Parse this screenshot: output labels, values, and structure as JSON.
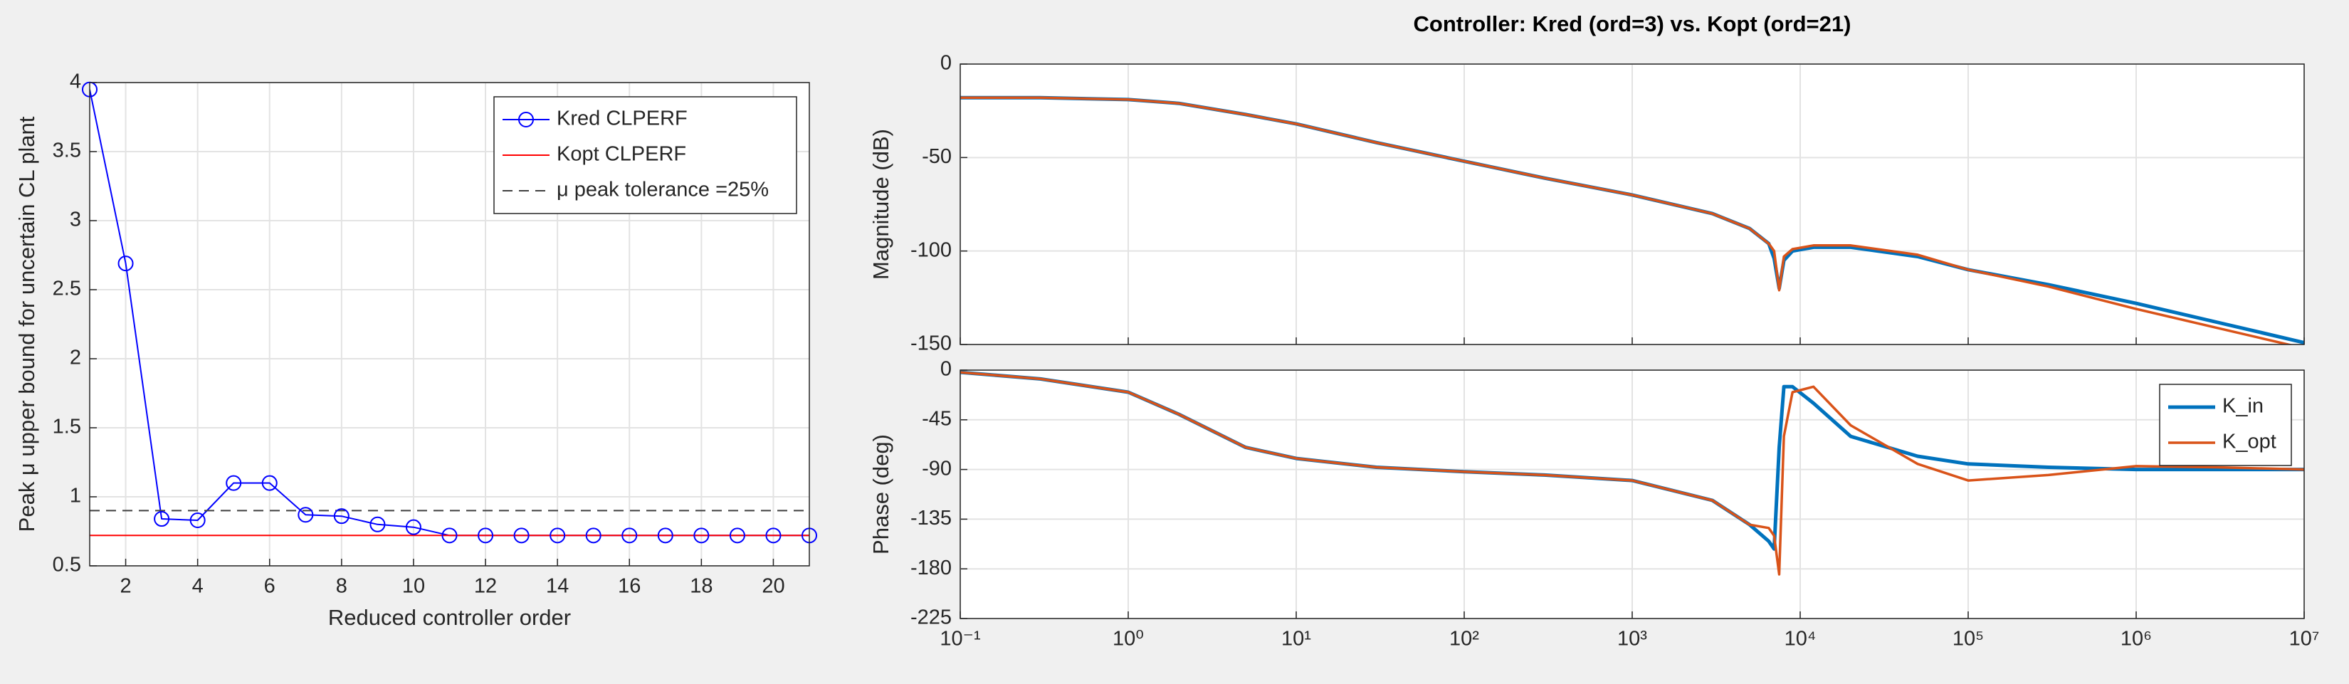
{
  "chart_data": [
    {
      "type": "line",
      "x": [
        1,
        2,
        3,
        4,
        5,
        6,
        7,
        8,
        9,
        10,
        11,
        12,
        13,
        14,
        15,
        16,
        17,
        18,
        19,
        20,
        21
      ],
      "xlim": [
        1,
        21
      ],
      "xticks": [
        2,
        4,
        6,
        8,
        10,
        12,
        14,
        16,
        18,
        20
      ],
      "ylim": [
        0.5,
        4
      ],
      "yticks": [
        0.5,
        1,
        1.5,
        2,
        2.5,
        3,
        3.5,
        4
      ],
      "xlabel": "Reduced controller order",
      "ylabel": "Peak μ upper bound for uncertain CL plant",
      "grid": true,
      "legend": "northeast",
      "series": [
        {
          "name": "Kred CLPERF",
          "color": "#0000ff",
          "marker": "circle",
          "values": [
            3.95,
            2.69,
            0.84,
            0.83,
            1.1,
            1.1,
            0.87,
            0.86,
            0.8,
            0.78,
            0.72,
            0.72,
            0.72,
            0.72,
            0.72,
            0.72,
            0.72,
            0.72,
            0.72,
            0.72,
            0.72
          ]
        },
        {
          "name": "Kopt CLPERF",
          "color": "#ff0000",
          "values": [
            0.72,
            0.72,
            0.72,
            0.72,
            0.72,
            0.72,
            0.72,
            0.72,
            0.72,
            0.72,
            0.72,
            0.72,
            0.72,
            0.72,
            0.72,
            0.72,
            0.72,
            0.72,
            0.72,
            0.72,
            0.72
          ]
        },
        {
          "name": "μ peak tolerance =25%",
          "color": "#404040",
          "dash": true,
          "values": [
            0.9,
            0.9,
            0.9,
            0.9,
            0.9,
            0.9,
            0.9,
            0.9,
            0.9,
            0.9,
            0.9,
            0.9,
            0.9,
            0.9,
            0.9,
            0.9,
            0.9,
            0.9,
            0.9,
            0.9,
            0.9
          ]
        }
      ]
    },
    {
      "type": "line",
      "title": "Controller: Kred (ord=3) vs. Kopt (ord=21)",
      "xscale": "log",
      "xticklabels": false,
      "x": [
        0.1,
        0.3,
        1,
        2,
        5,
        10,
        30,
        100,
        300,
        1000,
        3000,
        5000,
        6500,
        7000,
        7500,
        8000,
        9000,
        12000,
        20000,
        50000,
        100000,
        300000,
        1000000,
        3000000,
        10000000
      ],
      "xlim": [
        0.1,
        10000000
      ],
      "xticks": [
        0.1,
        1,
        10,
        100,
        1000,
        10000,
        100000,
        1000000,
        10000000
      ],
      "ylim": [
        -150,
        0
      ],
      "yticks": [
        -150,
        -100,
        -50,
        0
      ],
      "ylabel": "Magnitude (dB)",
      "grid": true,
      "series": [
        {
          "color": "#0072bd",
          "width": 5,
          "values": [
            -18,
            -18,
            -19,
            -21,
            -27,
            -32,
            -42,
            -52,
            -61,
            -70,
            -80,
            -88,
            -96,
            -104,
            -120,
            -105,
            -100,
            -98,
            -98,
            -103,
            -110,
            -118,
            -128,
            -138,
            -149
          ]
        },
        {
          "color": "#d95319",
          "width": 3.5,
          "values": [
            -18,
            -18,
            -19,
            -21,
            -27,
            -32,
            -42,
            -52,
            -61,
            -70,
            -80,
            -88,
            -96,
            -100,
            -121,
            -103,
            -99,
            -97,
            -97,
            -102,
            -110,
            -119,
            -131,
            -141,
            -152
          ]
        }
      ]
    },
    {
      "type": "line",
      "xscale": "log",
      "x": [
        0.1,
        0.3,
        1,
        2,
        5,
        10,
        30,
        100,
        300,
        1000,
        3000,
        5000,
        6500,
        7000,
        7500,
        8000,
        9000,
        12000,
        20000,
        50000,
        100000,
        300000,
        1000000,
        3000000,
        10000000
      ],
      "xlim": [
        0.1,
        10000000
      ],
      "xticks": [
        {
          "value": 0.1,
          "label": "10⁻¹"
        },
        {
          "value": 1,
          "label": "10⁰"
        },
        {
          "value": 10,
          "label": "10¹"
        },
        {
          "value": 100,
          "label": "10²"
        },
        {
          "value": 1000,
          "label": "10³"
        },
        {
          "value": 10000,
          "label": "10⁴"
        },
        {
          "value": 100000,
          "label": "10⁵"
        },
        {
          "value": 1000000,
          "label": "10⁶"
        },
        {
          "value": 10000000,
          "label": "10⁷"
        }
      ],
      "ylim": [
        -225,
        0
      ],
      "yticks": [
        -225,
        -180,
        -135,
        -90,
        -45,
        0
      ],
      "ylabel": "Phase (deg)",
      "grid": true,
      "legend": "northeast",
      "series": [
        {
          "name": "K_in",
          "color": "#0072bd",
          "width": 5,
          "values": [
            -2,
            -8,
            -20,
            -40,
            -70,
            -80,
            -88,
            -92,
            -95,
            -100,
            -118,
            -140,
            -155,
            -162,
            -70,
            -15,
            -15,
            -30,
            -60,
            -78,
            -85,
            -88,
            -90,
            -90,
            -90
          ]
        },
        {
          "name": "K_opt",
          "color": "#d95319",
          "width": 3.5,
          "values": [
            -2,
            -8,
            -20,
            -40,
            -70,
            -80,
            -88,
            -92,
            -95,
            -100,
            -118,
            -140,
            -143,
            -150,
            -185,
            -60,
            -20,
            -15,
            -50,
            -85,
            -100,
            -95,
            -87,
            -88,
            -90
          ]
        }
      ]
    }
  ]
}
